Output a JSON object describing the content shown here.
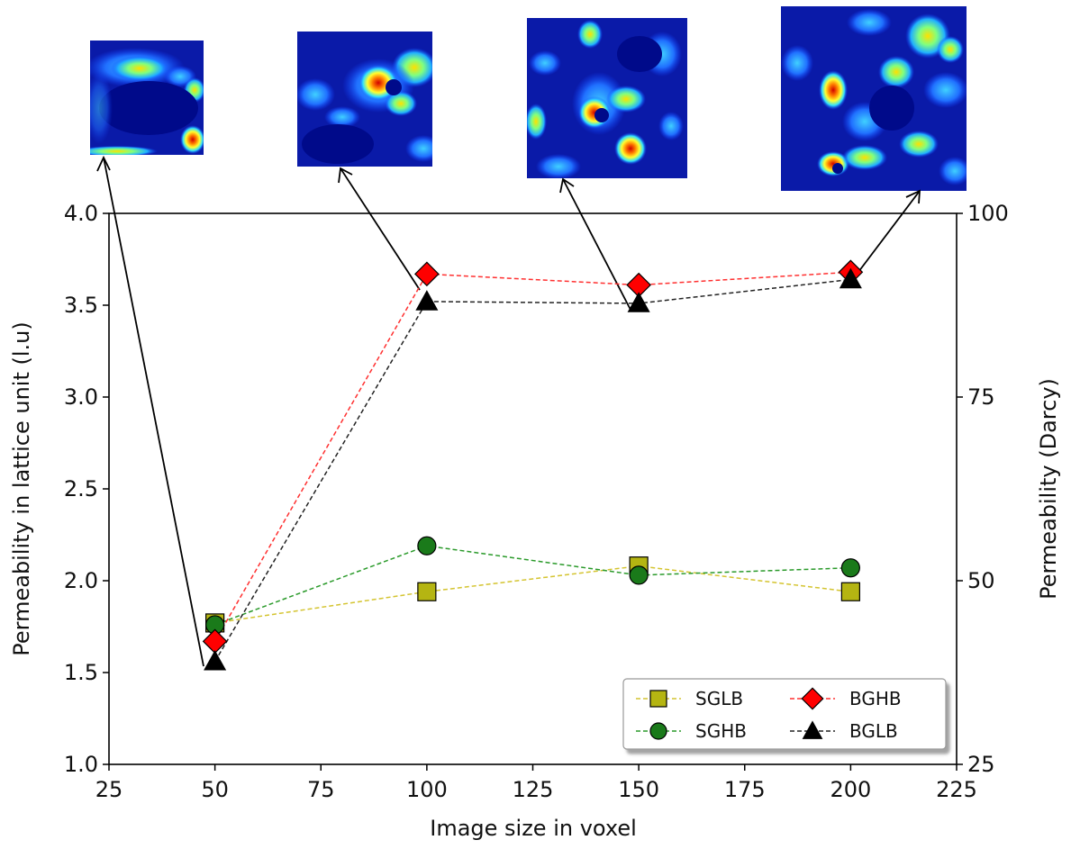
{
  "chart_data": {
    "type": "line",
    "xlabel": "Image size in voxel",
    "ylabel": "Permeability in lattice unit (l.u)",
    "ylabel_right": "Permeability (Darcy)",
    "xlim": [
      25,
      225
    ],
    "ylim": [
      1.0,
      4.0
    ],
    "ylim_right": [
      25,
      100
    ],
    "x_ticks": [
      25,
      50,
      75,
      100,
      125,
      150,
      175,
      200,
      225
    ],
    "y_ticks": [
      "1.0",
      "1.5",
      "2.0",
      "2.5",
      "3.0",
      "3.5",
      "4.0"
    ],
    "y_ticks_right": [
      25,
      50,
      75,
      100
    ],
    "grid": false,
    "legend_position": "lower-right",
    "x": [
      50,
      100,
      150,
      200
    ],
    "series": [
      {
        "name": "SGLB",
        "values": [
          1.77,
          1.94,
          2.08,
          1.94
        ],
        "color": "#d4c430",
        "marker": "square",
        "marker_color": "#b5b512"
      },
      {
        "name": "SGHB",
        "values": [
          1.76,
          2.19,
          2.03,
          2.07
        ],
        "color": "#2a9a2a",
        "marker": "circle",
        "marker_color": "#1a7a1a"
      },
      {
        "name": "BGHB",
        "values": [
          1.67,
          3.67,
          3.61,
          3.68
        ],
        "color": "#ff3030",
        "marker": "diamond",
        "marker_color": "#ff0000"
      },
      {
        "name": "BGLB",
        "values": [
          1.56,
          3.52,
          3.51,
          3.64
        ],
        "color": "#222222",
        "marker": "triangle",
        "marker_color": "#000000"
      }
    ],
    "legend_order": [
      "SGLB",
      "BGHB",
      "SGHB",
      "BGLB"
    ]
  }
}
